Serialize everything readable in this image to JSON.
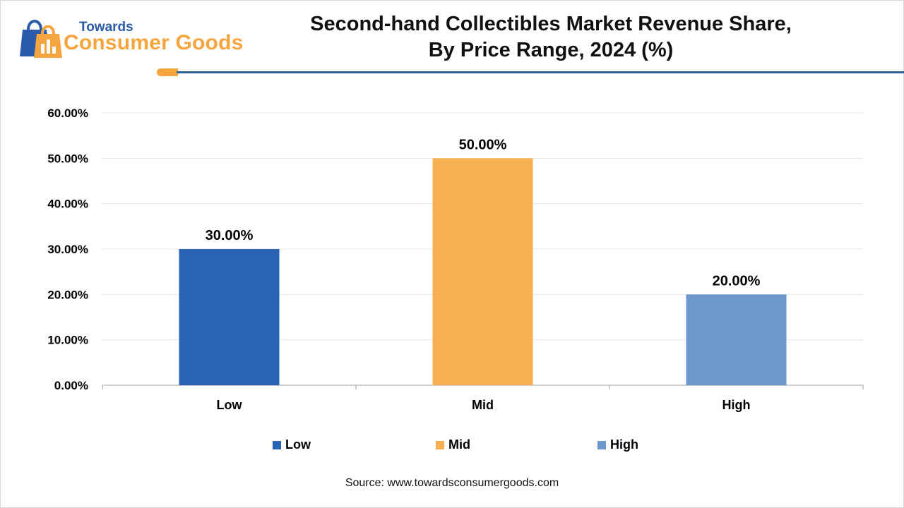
{
  "brand": {
    "small": "Towards",
    "big": "Consumer Goods"
  },
  "header": {
    "title_line1": "Second-hand Collectibles Market Revenue Share,",
    "title_line2": "By Price Range, 2024 (%)"
  },
  "source": "Source: www.towardsconsumergoods.com",
  "colors": {
    "low": "#2a63b4",
    "mid": "#f8b152",
    "high": "#6d98cd",
    "accent": "#f4a53f",
    "rule": "#2f5f97"
  },
  "chart_data": {
    "type": "bar",
    "title": "Second-hand Collectibles Market Revenue Share, By Price Range, 2024 (%)",
    "categories": [
      "Low",
      "Mid",
      "High"
    ],
    "values": [
      30,
      50,
      20
    ],
    "data_labels": [
      "30.00%",
      "50.00%",
      "20.00%"
    ],
    "ylim": [
      0,
      60
    ],
    "yticks": [
      0,
      10,
      20,
      30,
      40,
      50,
      60
    ],
    "ytick_labels": [
      "0.00%",
      "10.00%",
      "20.00%",
      "30.00%",
      "40.00%",
      "50.00%",
      "60.00%"
    ],
    "xlabel": "",
    "ylabel": "",
    "grid": true,
    "legend": [
      "Low",
      "Mid",
      "High"
    ],
    "legend_position": "bottom"
  }
}
